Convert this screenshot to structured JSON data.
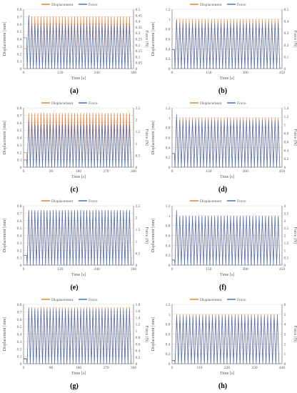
{
  "colors": {
    "displacement": "#ED7D31",
    "force": "#4472C4",
    "axis": "#595959",
    "grid": "#D9D9D9"
  },
  "chart_data": [
    {
      "label": "(a)",
      "type": "line",
      "title": "",
      "xlabel": "Time [s]",
      "ylabel": "Displacement [mm]",
      "y2label": "Force [N]",
      "xlim": [
        0,
        360
      ],
      "xticks": [
        0,
        120,
        240,
        360
      ],
      "ylim": [
        0,
        0.8
      ],
      "yticks": [
        0,
        0.1,
        0.2,
        0.3,
        0.4,
        0.5,
        0.6,
        0.7,
        0.8
      ],
      "y2lim": [
        0,
        0.5
      ],
      "y2ticks": [
        0,
        0.05,
        0.1,
        0.15,
        0.2,
        0.25,
        0.3,
        0.35,
        0.4,
        0.45,
        0.5
      ],
      "legend_position": "top",
      "series": [
        {
          "name": "Displacement",
          "axis": "left",
          "t_start": 12,
          "t_end": 355,
          "period": 10,
          "min": 0,
          "max": 0.7,
          "pre": 0.27
        },
        {
          "name": "Force",
          "axis": "right",
          "t_start": 12,
          "t_end": 355,
          "period": 10,
          "min": 0,
          "max": 0.37,
          "peak": 0.45,
          "pre": 0.26
        }
      ]
    },
    {
      "label": "(b)",
      "type": "line",
      "title": "",
      "xlabel": "Time [s]",
      "ylabel": "Displacement [mm]",
      "y2label": "Force [N]",
      "xlim": [
        0,
        450
      ],
      "xticks": [
        0,
        150,
        300,
        450
      ],
      "ylim": [
        0,
        1.2
      ],
      "yticks": [
        0,
        0.2,
        0.4,
        0.6,
        0.8,
        1,
        1.2
      ],
      "y2lim": [
        0,
        0.5
      ],
      "y2ticks": [
        0,
        0.1,
        0.2,
        0.3,
        0.4,
        0.5
      ],
      "legend_position": "top",
      "series": [
        {
          "name": "Displacement",
          "axis": "left",
          "t_start": 12,
          "t_end": 445,
          "period": 13,
          "min": 0,
          "max": 1.0,
          "pre": 0.38
        },
        {
          "name": "Force",
          "axis": "right",
          "t_start": 12,
          "t_end": 445,
          "period": 13,
          "min": 0,
          "max": 0.38,
          "peak": 0.41,
          "pre": 0.16
        }
      ]
    },
    {
      "label": "(c)",
      "type": "line",
      "title": "",
      "xlabel": "Time [s]",
      "ylabel": "Displacement [mm]",
      "y2label": "Force [N]",
      "xlim": [
        0,
        360
      ],
      "xticks": [
        0,
        90,
        180,
        270,
        360
      ],
      "ylim": [
        0,
        0.8
      ],
      "yticks": [
        0,
        0.1,
        0.2,
        0.3,
        0.4,
        0.5,
        0.6,
        0.7,
        0.8
      ],
      "y2lim": [
        0,
        2.5
      ],
      "y2ticks": [
        0,
        0.5,
        1,
        1.5,
        2,
        2.5
      ],
      "legend_position": "top",
      "series": [
        {
          "name": "Displacement",
          "axis": "left",
          "t_start": 12,
          "t_end": 355,
          "period": 10,
          "min": 0,
          "max": 0.73,
          "pre": 0.2
        },
        {
          "name": "Force",
          "axis": "right",
          "t_start": 12,
          "t_end": 355,
          "period": 10,
          "min": 0,
          "max": 1.8,
          "peak": 1.9,
          "pre": 0.3
        }
      ]
    },
    {
      "label": "(d)",
      "type": "line",
      "title": "",
      "xlabel": "Time [s]",
      "ylabel": "Displacement [mm]",
      "y2label": "Force [N]",
      "xlim": [
        0,
        450
      ],
      "xticks": [
        0,
        150,
        300,
        450
      ],
      "ylim": [
        0,
        1.2
      ],
      "yticks": [
        0,
        0.2,
        0.4,
        0.6,
        0.8,
        1,
        1.2
      ],
      "y2lim": [
        0,
        1.4
      ],
      "y2ticks": [
        0,
        0.2,
        0.4,
        0.6,
        0.8,
        1,
        1.2,
        1.4
      ],
      "legend_position": "top",
      "series": [
        {
          "name": "Displacement",
          "axis": "left",
          "t_start": 12,
          "t_end": 445,
          "period": 13,
          "min": 0,
          "max": 1.0,
          "pre": 0.28
        },
        {
          "name": "Force",
          "axis": "right",
          "t_start": 12,
          "t_end": 445,
          "period": 13,
          "min": 0,
          "max": 1.1,
          "peak": 1.25,
          "pre": 0.32
        }
      ]
    },
    {
      "label": "(e)",
      "type": "line",
      "title": "",
      "xlabel": "Time [s]",
      "ylabel": "Displacement [mm]",
      "y2label": "Force [N]",
      "xlim": [
        0,
        360
      ],
      "xticks": [
        0,
        120,
        240,
        360
      ],
      "ylim": [
        0,
        0.8
      ],
      "yticks": [
        0,
        0.1,
        0.2,
        0.3,
        0.4,
        0.5,
        0.6,
        0.7,
        0.8
      ],
      "y2lim": [
        0,
        2.5
      ],
      "y2ticks": [
        0,
        0.5,
        1,
        1.5,
        2,
        2.5
      ],
      "legend_position": "top",
      "series": [
        {
          "name": "Displacement",
          "axis": "left",
          "t_start": 12,
          "t_end": 355,
          "period": 10,
          "min": 0,
          "max": 0.74,
          "pre": 0.13
        },
        {
          "name": "Force",
          "axis": "right",
          "t_start": 12,
          "t_end": 355,
          "period": 10,
          "min": 0,
          "max": 2.3,
          "peak": 2.3,
          "pre": 0.4
        }
      ]
    },
    {
      "label": "(f)",
      "type": "line",
      "title": "",
      "xlabel": "Time [s]",
      "ylabel": "Displacement [mm]",
      "y2label": "Force [N]",
      "xlim": [
        0,
        450
      ],
      "xticks": [
        0,
        150,
        300,
        450
      ],
      "ylim": [
        0,
        1.2
      ],
      "yticks": [
        0,
        0.2,
        0.4,
        0.6,
        0.8,
        1,
        1.2
      ],
      "y2lim": [
        0,
        4
      ],
      "y2ticks": [
        0,
        0.5,
        1,
        1.5,
        2,
        2.5,
        3,
        3.5,
        4
      ],
      "legend_position": "top",
      "series": [
        {
          "name": "Displacement",
          "axis": "left",
          "t_start": 12,
          "t_end": 445,
          "period": 13,
          "min": 0,
          "max": 0.99,
          "pre": 0.1
        },
        {
          "name": "Force",
          "axis": "right",
          "t_start": 12,
          "t_end": 445,
          "period": 13,
          "min": 0,
          "max": 3.3,
          "peak": 3.7,
          "pre": 0.35
        }
      ]
    },
    {
      "label": "(g)",
      "type": "line",
      "title": "",
      "xlabel": "Time [s]",
      "ylabel": "Displacement [mm]",
      "y2label": "Force [N]",
      "xlim": [
        0,
        360
      ],
      "xticks": [
        0,
        90,
        180,
        270,
        360
      ],
      "ylim": [
        0,
        0.8
      ],
      "yticks": [
        0,
        0.1,
        0.2,
        0.3,
        0.4,
        0.5,
        0.6,
        0.7,
        0.8
      ],
      "y2lim": [
        0,
        1.8
      ],
      "y2ticks": [
        0,
        0.2,
        0.4,
        0.6,
        0.8,
        1,
        1.2,
        1.4,
        1.6,
        1.8
      ],
      "legend_position": "top",
      "series": [
        {
          "name": "Displacement",
          "axis": "left",
          "t_start": 12,
          "t_end": 355,
          "period": 10,
          "min": 0,
          "max": 0.76,
          "pre": 0.07
        },
        {
          "name": "Force",
          "axis": "right",
          "t_start": 12,
          "t_end": 355,
          "period": 10,
          "min": 0,
          "max": 1.65,
          "peak": 1.68,
          "pre": 0.14
        }
      ]
    },
    {
      "label": "(h)",
      "type": "line",
      "title": "",
      "xlabel": "Time [s]",
      "ylabel": "Displacement [mm]",
      "y2label": "Force [N]",
      "xlim": [
        0,
        440
      ],
      "xticks": [
        0,
        110,
        220,
        330,
        440
      ],
      "ylim": [
        0,
        1.2
      ],
      "yticks": [
        0,
        0.2,
        0.4,
        0.6,
        0.8,
        1,
        1.2
      ],
      "y2lim": [
        0,
        6
      ],
      "y2ticks": [
        0,
        1,
        2,
        3,
        4,
        5,
        6
      ],
      "legend_position": "top",
      "series": [
        {
          "name": "Displacement",
          "axis": "left",
          "t_start": 12,
          "t_end": 435,
          "period": 13,
          "min": 0,
          "max": 1.0,
          "pre": 0.07
        },
        {
          "name": "Force",
          "axis": "right",
          "t_start": 12,
          "t_end": 435,
          "period": 13,
          "min": 0,
          "max": 4.8,
          "peak": 4.8,
          "pre": 0.3
        }
      ]
    }
  ]
}
